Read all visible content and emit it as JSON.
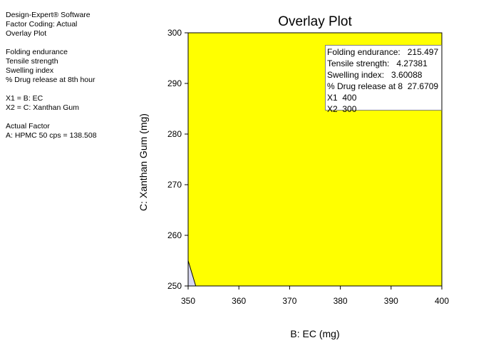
{
  "info": {
    "software": "Design-Expert® Software",
    "coding": "Factor Coding: Actual",
    "plot_name": "Overlay Plot",
    "responses": [
      "Folding endurance",
      "Tensile strength",
      "Swelling index",
      "% Drug release at 8th hour"
    ],
    "factors": [
      "X1 = B: EC",
      "X2 = C: Xanthan Gum"
    ],
    "actual_factor_heading": "Actual Factor",
    "actual_factor_value": "A: HPMC 50 cps = 138.508"
  },
  "tooltip": {
    "lines": [
      "Folding endurance:   215.497",
      "Tensile strength:   4.27381",
      "Swelling index:   3.60088",
      "% Drug release at 8  27.6709",
      "X1  400",
      "X2  300"
    ]
  },
  "chart_data": {
    "type": "area",
    "title": "Overlay Plot",
    "xlabel": "B: EC (mg)",
    "ylabel": "C: Xanthan Gum (mg)",
    "xlim": [
      350,
      400
    ],
    "ylim": [
      250,
      300
    ],
    "xticks": [
      350,
      360,
      370,
      380,
      390,
      400
    ],
    "yticks": [
      250,
      260,
      270,
      280,
      290,
      300
    ],
    "regions": [
      {
        "role": "feasible",
        "color": "#ffff00",
        "polygon": [
          [
            351.5,
            250
          ],
          [
            400,
            250
          ],
          [
            400,
            300
          ],
          [
            350,
            300
          ],
          [
            350,
            255
          ]
        ]
      },
      {
        "role": "excluded",
        "color": "#d8d8f0",
        "polygon": [
          [
            350,
            250
          ],
          [
            351.5,
            250
          ],
          [
            350,
            255
          ]
        ]
      }
    ]
  }
}
